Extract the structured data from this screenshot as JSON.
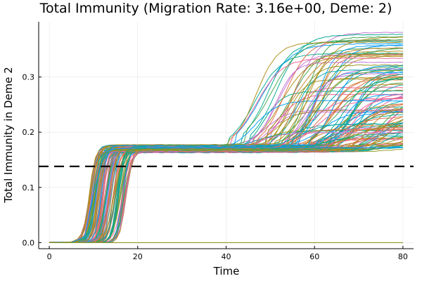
{
  "chart_data": {
    "type": "line",
    "title": "Total Immunity (Migration Rate: 3.16e+00, Deme: 2)",
    "xlabel": "Time",
    "ylabel": "Total Immunity in Deme 2",
    "xlim": [
      -2.4,
      82.4
    ],
    "ylim": [
      -0.011,
      0.4
    ],
    "xticks": [
      0,
      20,
      40,
      60,
      80
    ],
    "xtick_labels": [
      "0",
      "20",
      "40",
      "60",
      "80"
    ],
    "yticks": [
      0.0,
      0.1,
      0.2,
      0.3
    ],
    "ytick_labels": [
      "0.0",
      "0.1",
      "0.2",
      "0.3"
    ],
    "grid": true,
    "legend": "none",
    "reference_line": {
      "y": 0.138,
      "style": "dashed",
      "color": "#000000"
    },
    "palette": [
      "#009AFA",
      "#E36F47",
      "#3EA44E",
      "#C371D2",
      "#AC8E18",
      "#00AAAE",
      "#ED5E93",
      "#C68225",
      "#00A98D",
      "#8E971E"
    ],
    "series_summary": {
      "description_type": "stochastic ensemble",
      "count": 120,
      "x_range": [
        0,
        80
      ],
      "initial_value": 0.0,
      "rise_time_range": [
        8,
        18
      ],
      "plateau_range": [
        0.163,
        0.177
      ],
      "late_rise_start_range": [
        38,
        78
      ],
      "final_value_range": [
        0.165,
        0.385
      ]
    },
    "series": [
      {
        "x": [
          0,
          5,
          8,
          10,
          12,
          13,
          15,
          20,
          40,
          80
        ],
        "y": [
          0,
          0,
          0.01,
          0.09,
          0.15,
          0.165,
          0.17,
          0.172,
          0.172,
          0.172
        ]
      },
      {
        "x": [
          0,
          80
        ],
        "y": [
          0,
          0
        ]
      }
    ]
  }
}
